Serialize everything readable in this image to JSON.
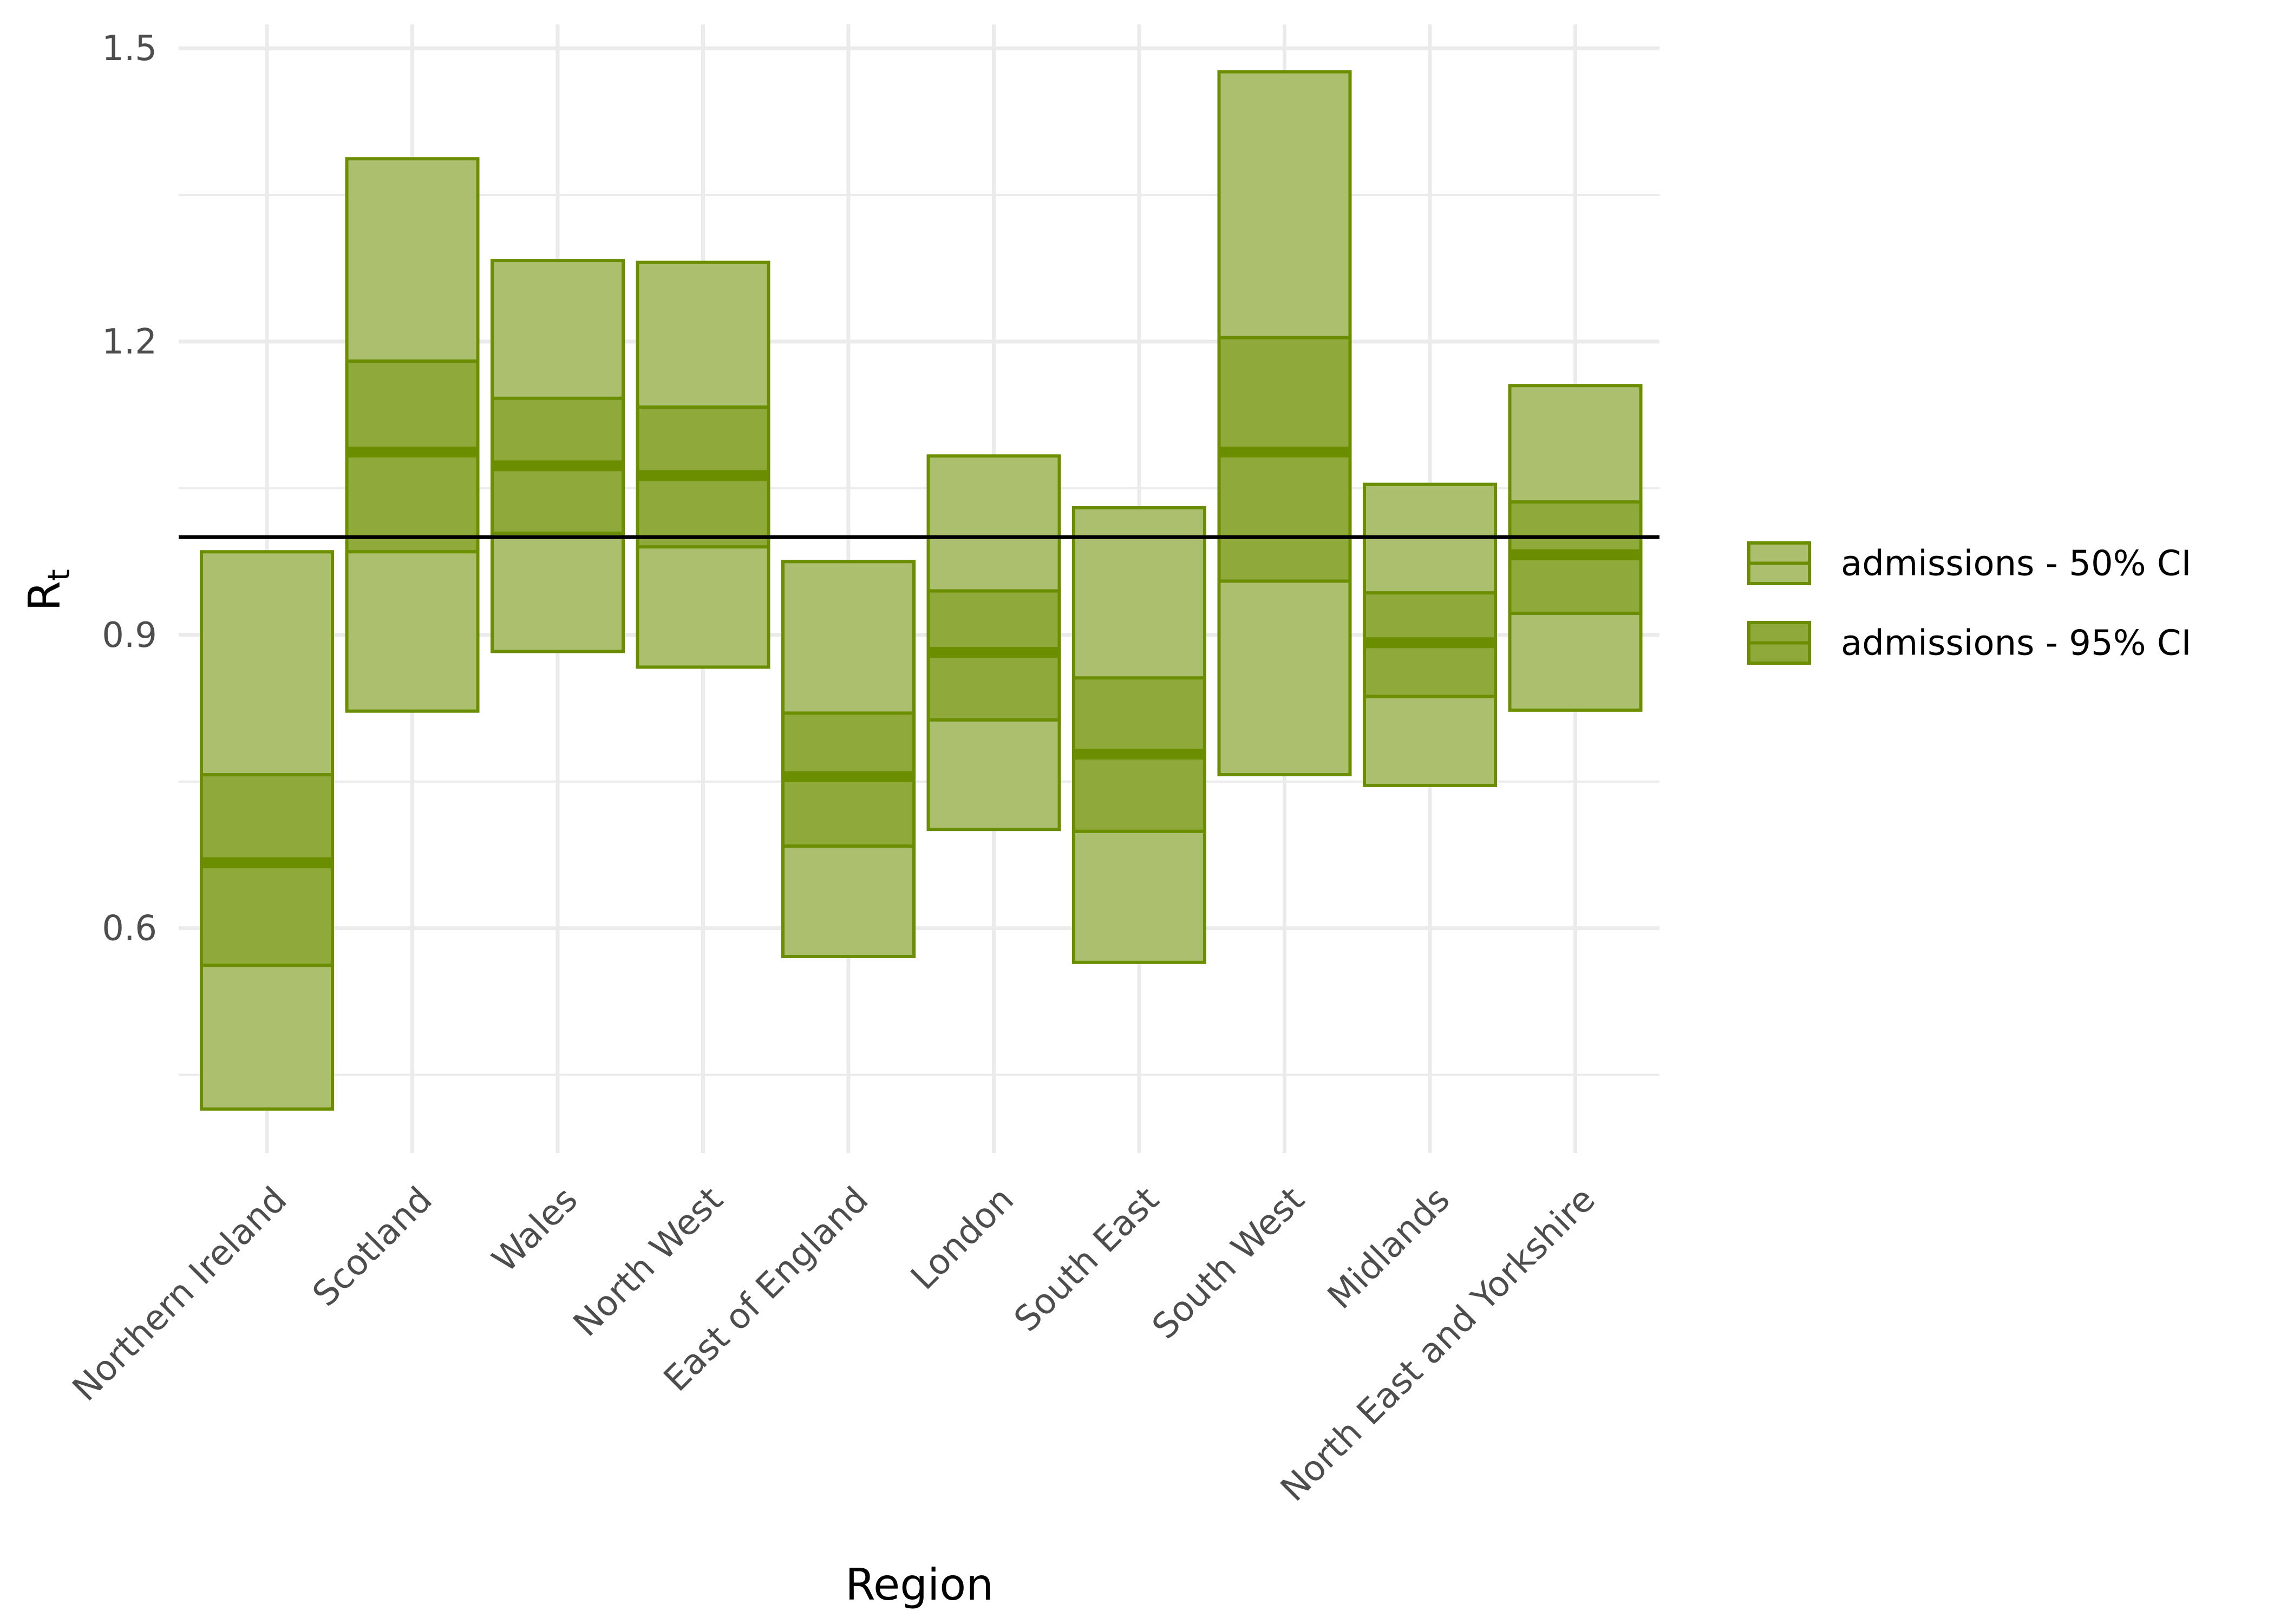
{
  "chart_data": {
    "type": "crossbar",
    "xlabel": "Region",
    "ylabel": {
      "main": "R",
      "subscript": "t"
    },
    "ylim": [
      0.37,
      1.53
    ],
    "yticks": [
      0.6,
      0.9,
      1.2,
      1.5
    ],
    "y_minor_ticks": [
      0.45,
      0.75,
      1.05,
      1.35
    ],
    "reference_line": 1.0,
    "grid": true,
    "legend_position": "right",
    "colors": {
      "line": "#6b8e00",
      "light_fill": "#acbf6f",
      "dark_fill": "#8fa93a",
      "ref_line": "#000000",
      "grid": "#ebebeb"
    },
    "legend": [
      {
        "label": "admissions - 50% CI",
        "level": "light"
      },
      {
        "label": "admissions - 95% CI",
        "level": "dark"
      }
    ],
    "regions": [
      {
        "name": "Northern Ireland",
        "outer": [
          0.415,
          0.985
        ],
        "inner": [
          0.562,
          0.757
        ],
        "median": 0.667
      },
      {
        "name": "Scotland",
        "outer": [
          0.822,
          1.387
        ],
        "inner": [
          0.985,
          1.18
        ],
        "median": 1.087
      },
      {
        "name": "Wales",
        "outer": [
          0.883,
          1.283
        ],
        "inner": [
          1.004,
          1.142
        ],
        "median": 1.073
      },
      {
        "name": "North West",
        "outer": [
          0.867,
          1.281
        ],
        "inner": [
          0.99,
          1.133
        ],
        "median": 1.063
      },
      {
        "name": "East of England",
        "outer": [
          0.571,
          0.975
        ],
        "inner": [
          0.684,
          0.82
        ],
        "median": 0.755
      },
      {
        "name": "London",
        "outer": [
          0.701,
          1.083
        ],
        "inner": [
          0.813,
          0.945
        ],
        "median": 0.882
      },
      {
        "name": "South East",
        "outer": [
          0.565,
          1.03
        ],
        "inner": [
          0.699,
          0.856
        ],
        "median": 0.778
      },
      {
        "name": "South West",
        "outer": [
          0.757,
          1.476
        ],
        "inner": [
          0.955,
          1.204
        ],
        "median": 1.087
      },
      {
        "name": "Midlands",
        "outer": [
          0.746,
          1.054
        ],
        "inner": [
          0.837,
          0.943
        ],
        "median": 0.892
      },
      {
        "name": "North East and Yorkshire",
        "outer": [
          0.823,
          1.155
        ],
        "inner": [
          0.922,
          1.036
        ],
        "median": 0.982
      }
    ]
  }
}
